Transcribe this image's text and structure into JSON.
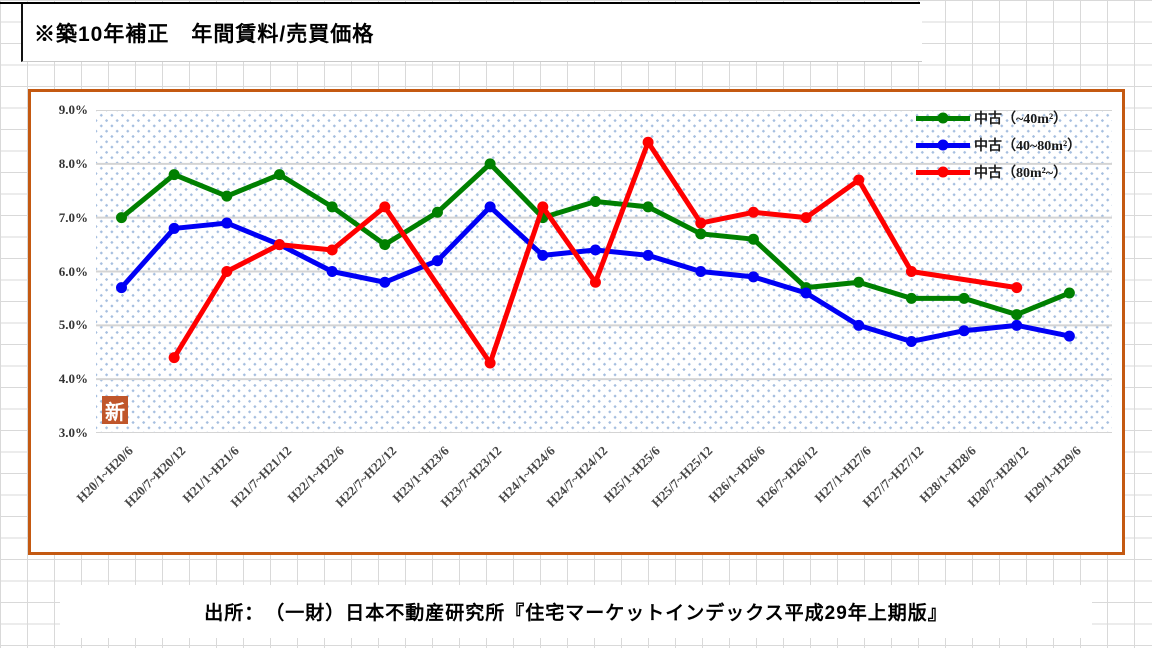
{
  "page": {
    "title": "※築10年補正　年間賃料/売買価格",
    "source": "出所：　（一財）日本不動産研究所『住宅マーケットインデックス平成29年上期版』",
    "stamp": "新"
  },
  "chart_data": {
    "type": "line",
    "title": "※築10年補正 年間賃料/売買価格",
    "categories": [
      "H20/1~H20/6",
      "H20/7~H20/12",
      "H21/1~H21/6",
      "H21/7~H21/12",
      "H22/1~H22/6",
      "H22/7~H22/12",
      "H23/1~H23/6",
      "H23/7~H23/12",
      "H24/1~H24/6",
      "H24/7~H24/12",
      "H25/1~H25/6",
      "H25/7~H25/12",
      "H26/1~H26/6",
      "H26/7~H26/12",
      "H27/1~H27/6",
      "H27/7~H27/12",
      "H28/1~H28/6",
      "H28/7~H28/12",
      "H29/1~H29/6"
    ],
    "series": [
      {
        "name": "中古（~40m²）",
        "color": "#008000",
        "values": [
          7.0,
          7.8,
          7.4,
          7.8,
          7.2,
          6.5,
          7.1,
          8.0,
          7.0,
          7.3,
          7.2,
          6.7,
          6.6,
          5.7,
          5.8,
          5.5,
          5.5,
          5.2,
          5.6
        ]
      },
      {
        "name": "中古（40~80m²）",
        "color": "#0000f5",
        "values": [
          5.7,
          6.8,
          6.9,
          6.5,
          6.0,
          5.8,
          6.2,
          7.2,
          6.3,
          6.4,
          6.3,
          6.0,
          5.9,
          5.6,
          5.0,
          4.7,
          4.9,
          5.0,
          4.8
        ]
      },
      {
        "name": "中古（80m²~）",
        "color": "#ff0000",
        "values": [
          null,
          4.4,
          6.0,
          6.5,
          6.4,
          7.2,
          null,
          4.3,
          7.2,
          5.8,
          8.4,
          6.9,
          7.1,
          7.0,
          7.7,
          6.0,
          null,
          5.7,
          null
        ]
      }
    ],
    "y_ticks": [
      "9.0%",
      "8.0%",
      "7.0%",
      "6.0%",
      "5.0%",
      "4.0%",
      "3.0%"
    ],
    "ylim": [
      3.0,
      9.0
    ],
    "y_tick_step": 1.0,
    "ylabel": "",
    "xlabel": "",
    "grid": true,
    "legend_position": "top-right",
    "plot_background": "blue dotted pattern",
    "gridline_color": "#d4d4d4",
    "frame_color": "#c45911"
  }
}
